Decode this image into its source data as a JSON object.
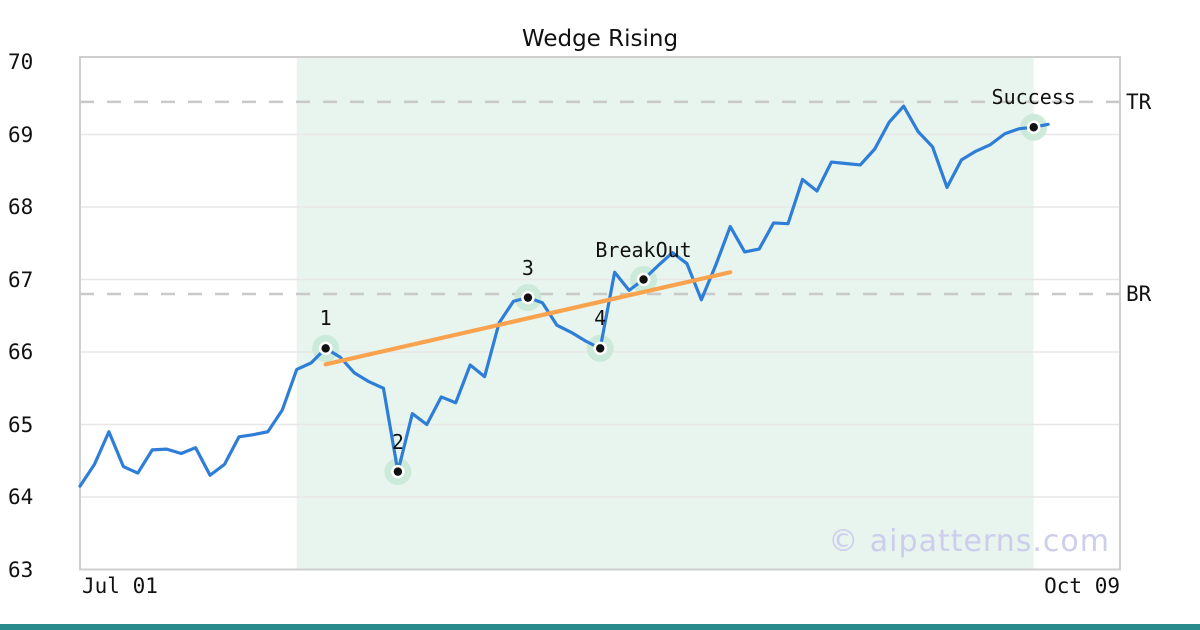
{
  "chart_data": {
    "type": "line",
    "title": "Wedge Rising",
    "x_axis": {
      "start_label": "Jul 01",
      "end_label": "Oct 09"
    },
    "y_axis": {
      "ticks": [
        70,
        69,
        68,
        67,
        66,
        65,
        64,
        63
      ],
      "min": 63,
      "max": 70.07,
      "grid_values": [
        64,
        65,
        66,
        67,
        68,
        69
      ]
    },
    "series": [
      {
        "name": "price",
        "values": [
          64.15,
          64.45,
          64.9,
          64.42,
          64.33,
          64.65,
          64.66,
          64.6,
          64.68,
          64.3,
          64.45,
          64.83,
          64.86,
          64.9,
          65.2,
          65.76,
          65.85,
          66.05,
          65.93,
          65.71,
          65.59,
          65.5,
          64.35,
          65.15,
          65.0,
          65.38,
          65.3,
          65.82,
          65.66,
          66.4,
          66.7,
          66.75,
          66.68,
          66.37,
          66.27,
          66.15,
          66.05,
          67.1,
          66.85,
          67.0,
          67.19,
          67.37,
          67.22,
          66.72,
          67.2,
          67.73,
          67.38,
          67.42,
          67.78,
          67.77,
          68.38,
          68.22,
          68.62,
          68.6,
          68.58,
          68.8,
          69.17,
          69.39,
          69.04,
          68.83,
          68.27,
          68.65,
          68.77,
          68.86,
          69.01,
          69.08,
          69.1,
          69.14
        ]
      }
    ],
    "pattern_points": [
      {
        "label": "1",
        "index": 17,
        "value": 66.05
      },
      {
        "label": "2",
        "index": 22,
        "value": 64.35
      },
      {
        "label": "3",
        "index": 31,
        "value": 66.75
      },
      {
        "label": "4",
        "index": 36,
        "value": 66.05
      },
      {
        "label": "BreakOut",
        "index": 39,
        "value": 67.0
      },
      {
        "label": "Success",
        "index": 66,
        "value": 69.1
      }
    ],
    "levels": [
      {
        "label": "TR",
        "value": 69.45
      },
      {
        "label": "BR",
        "value": 66.8
      }
    ],
    "trendline": {
      "from_index": 17,
      "from_value": 65.83,
      "to_index": 45,
      "to_value": 67.1
    },
    "shaded_region": {
      "from_index": 15,
      "to_index": 66
    },
    "legend": {
      "position": "none"
    }
  },
  "watermark": {
    "text": "© aipatterns.com"
  },
  "colors": {
    "price_line": "#2e7ed8",
    "trend_line": "#f9a34f",
    "shaded_region": "#e8f4ee",
    "marker_halo": "#c9e9d6",
    "marker_dot": "#111111",
    "marker_ring": "#ffffff",
    "level_dash": "#c9c9c9",
    "grid_line": "#e7e7e7",
    "plot_border": "#cfcfcf",
    "bottom_bar": "#2a8b8d",
    "watermark_text": "#cdcdec"
  }
}
